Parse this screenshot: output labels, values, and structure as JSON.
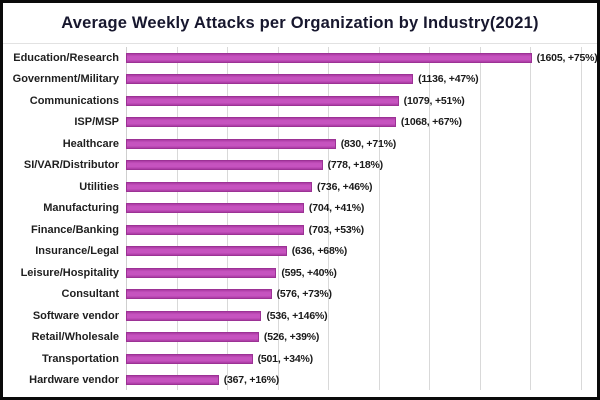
{
  "chart_data": {
    "type": "bar",
    "orientation": "horizontal",
    "title": "Average Weekly Attacks per Organization by Industry(2021)",
    "categories": [
      "Education/Research",
      "Government/Military",
      "Communications",
      "ISP/MSP",
      "Healthcare",
      "SI/VAR/Distributor",
      "Utilities",
      "Manufacturing",
      "Finance/Banking",
      "Insurance/Legal",
      "Leisure/Hospitality",
      "Consultant",
      "Software vendor",
      "Retail/Wholesale",
      "Transportation",
      "Hardware vendor"
    ],
    "values": [
      1605,
      1136,
      1079,
      1068,
      830,
      778,
      736,
      704,
      703,
      636,
      595,
      576,
      536,
      526,
      501,
      367
    ],
    "yoy_change": [
      "+75%",
      "+47%",
      "+51%",
      "+67%",
      "+71%",
      "+18%",
      "+46%",
      "+41%",
      "+53%",
      "+68%",
      "+40%",
      "+73%",
      "+146%",
      "+39%",
      "+34%",
      "+16%"
    ],
    "annotations": [
      "(1605, +75%)",
      "(1136, +47%)",
      "(1079, +51%)",
      "(1068, +67%)",
      "(830, +71%)",
      "(778, +18%)",
      "(736, +46%)",
      "(704, +41%)",
      "(703, +53%)",
      "(636, +68%)",
      "(595, +40%)",
      "(576, +73%)",
      "(536, +146%)",
      "(526, +39%)",
      "(501, +34%)",
      "(367, +16%)"
    ],
    "xlabel": "",
    "ylabel": "",
    "xlim": [
      0,
      1840
    ],
    "grid_interval": 200,
    "grid": true,
    "legend": false,
    "colors": {
      "bar": "#bd49b6",
      "bar_border": "#9c3295",
      "gridline": "#d9d9d9",
      "title_text": "#17172e",
      "label_text": "#1f1f1f",
      "frame_border": "#0a0a0a",
      "background": "#ffffff"
    }
  }
}
